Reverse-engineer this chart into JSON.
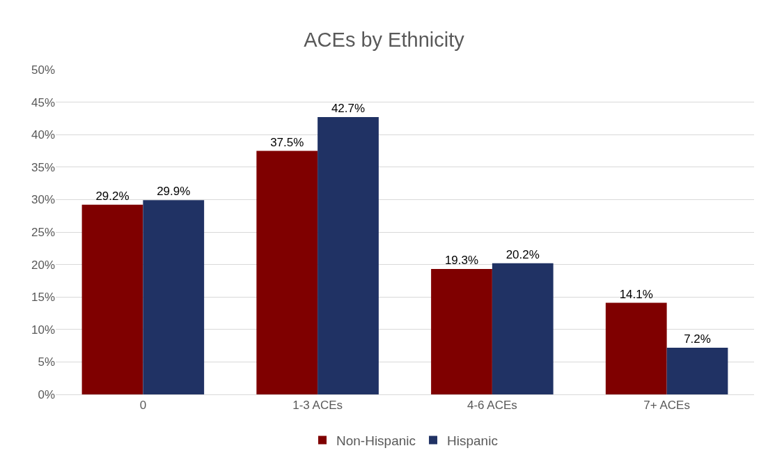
{
  "chart_data": {
    "type": "bar",
    "title": "ACEs by Ethnicity",
    "categories": [
      "0",
      "1-3 ACEs",
      "4-6 ACEs",
      "7+ ACEs"
    ],
    "series": [
      {
        "name": "Non-Hispanic",
        "color": "#7f0000",
        "values": [
          29.2,
          37.5,
          19.3,
          14.1
        ],
        "value_labels": [
          "29.2%",
          "37.5%",
          "19.3%",
          "14.1%"
        ]
      },
      {
        "name": "Hispanic",
        "color": "#203264",
        "values": [
          29.9,
          42.7,
          20.2,
          7.2
        ],
        "value_labels": [
          "29.9%",
          "42.7%",
          "20.2%",
          "7.2%"
        ]
      }
    ],
    "ylim": [
      0,
      50
    ],
    "yticks": [
      {
        "value": 0,
        "label": "0%"
      },
      {
        "value": 5,
        "label": "5%"
      },
      {
        "value": 10,
        "label": "10%"
      },
      {
        "value": 15,
        "label": "15%"
      },
      {
        "value": 20,
        "label": "20%"
      },
      {
        "value": 25,
        "label": "25%"
      },
      {
        "value": 30,
        "label": "30%"
      },
      {
        "value": 35,
        "label": "35%"
      },
      {
        "value": 40,
        "label": "40%"
      },
      {
        "value": 45,
        "label": "45%"
      },
      {
        "value": 50,
        "label": "50%"
      }
    ],
    "grid": "y",
    "legend": "bottom"
  }
}
